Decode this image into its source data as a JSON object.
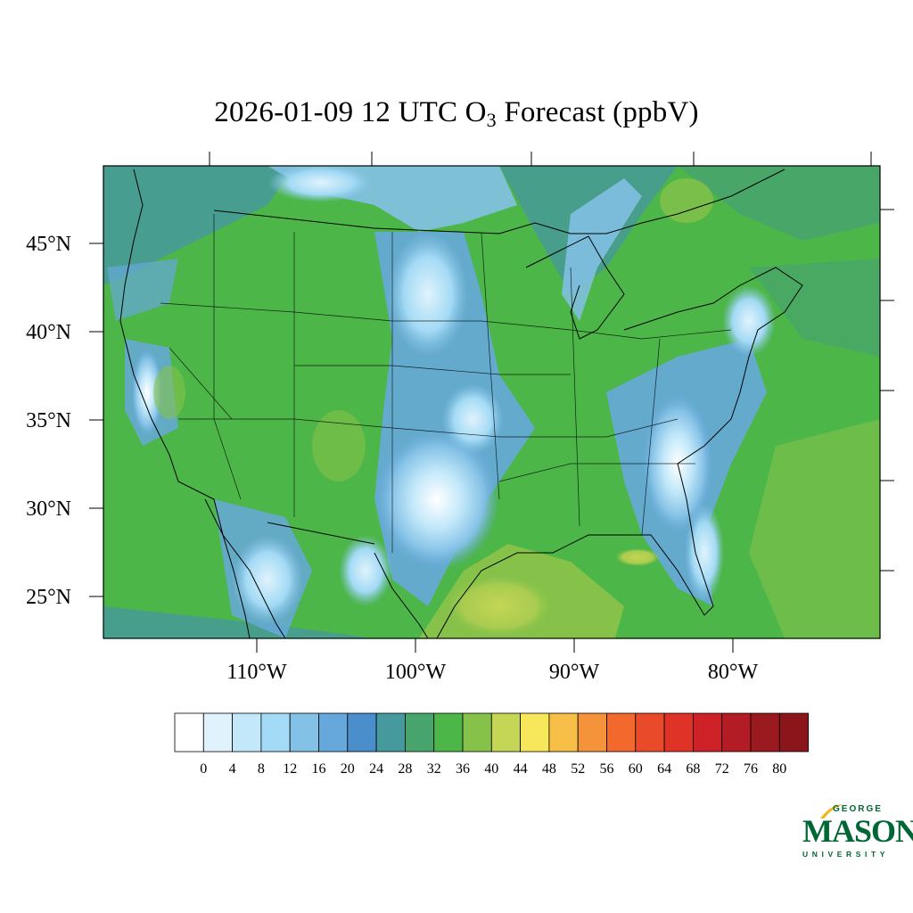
{
  "title": {
    "prefix": "2026-01-09 12 UTC O",
    "subscript": "3",
    "suffix": " Forecast (ppbV)"
  },
  "map": {
    "lat_labels": [
      "45°N",
      "40°N",
      "35°N",
      "30°N",
      "25°N"
    ],
    "lon_labels": [
      "110°W",
      "100°W",
      "90°W",
      "80°W"
    ],
    "lat_range": [
      22.5,
      49.5
    ],
    "lon_range": [
      -119.5,
      -70.5
    ]
  },
  "colorbar": {
    "labels": [
      "0",
      "4",
      "8",
      "12",
      "16",
      "20",
      "24",
      "28",
      "32",
      "36",
      "40",
      "44",
      "48",
      "52",
      "56",
      "60",
      "64",
      "68",
      "72",
      "76",
      "80"
    ],
    "colors": [
      "#ffffff",
      "#e0f3fc",
      "#c2e8f9",
      "#a3daf5",
      "#84c1e6",
      "#67a8dc",
      "#4a8ecc",
      "#46999c",
      "#48a46d",
      "#4cb648",
      "#86c24a",
      "#c5d555",
      "#f6e85a",
      "#f8bf48",
      "#f5933b",
      "#f2682d",
      "#e94b2a",
      "#de3326",
      "#cf2128",
      "#b31c25",
      "#9b1a1f",
      "#8a151a"
    ]
  },
  "logo": {
    "line1": "GEORGE",
    "line2": "MASON",
    "line3": "UNIVERSITY"
  }
}
